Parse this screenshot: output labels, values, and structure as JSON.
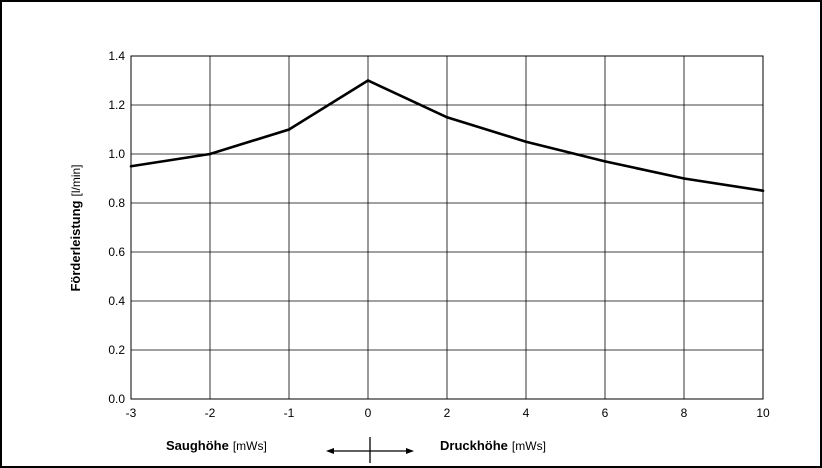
{
  "chart_data": {
    "type": "line",
    "x_ticks": [
      "-3",
      "-2",
      "-1",
      "0",
      "2",
      "4",
      "6",
      "8",
      "10"
    ],
    "y_ticks": [
      "0.0",
      "0.2",
      "0.4",
      "0.6",
      "0.8",
      "1.0",
      "1.2",
      "1.4"
    ],
    "ylim": [
      0,
      1.4
    ],
    "ylabel": "Förderleistung",
    "ylabel_unit": "[l/min]",
    "xlabel_left": "Saughöhe",
    "xlabel_left_unit": "[mWs]",
    "xlabel_right": "Druckhöhe",
    "xlabel_right_unit": "[mWs]",
    "grid": true,
    "series": [
      {
        "x": [
          -3,
          -2,
          -1,
          0,
          2,
          4,
          6,
          8,
          10
        ],
        "y": [
          0.95,
          1.0,
          1.1,
          1.3,
          1.15,
          1.05,
          0.97,
          0.9,
          0.85
        ],
        "color": "#000000"
      }
    ]
  }
}
